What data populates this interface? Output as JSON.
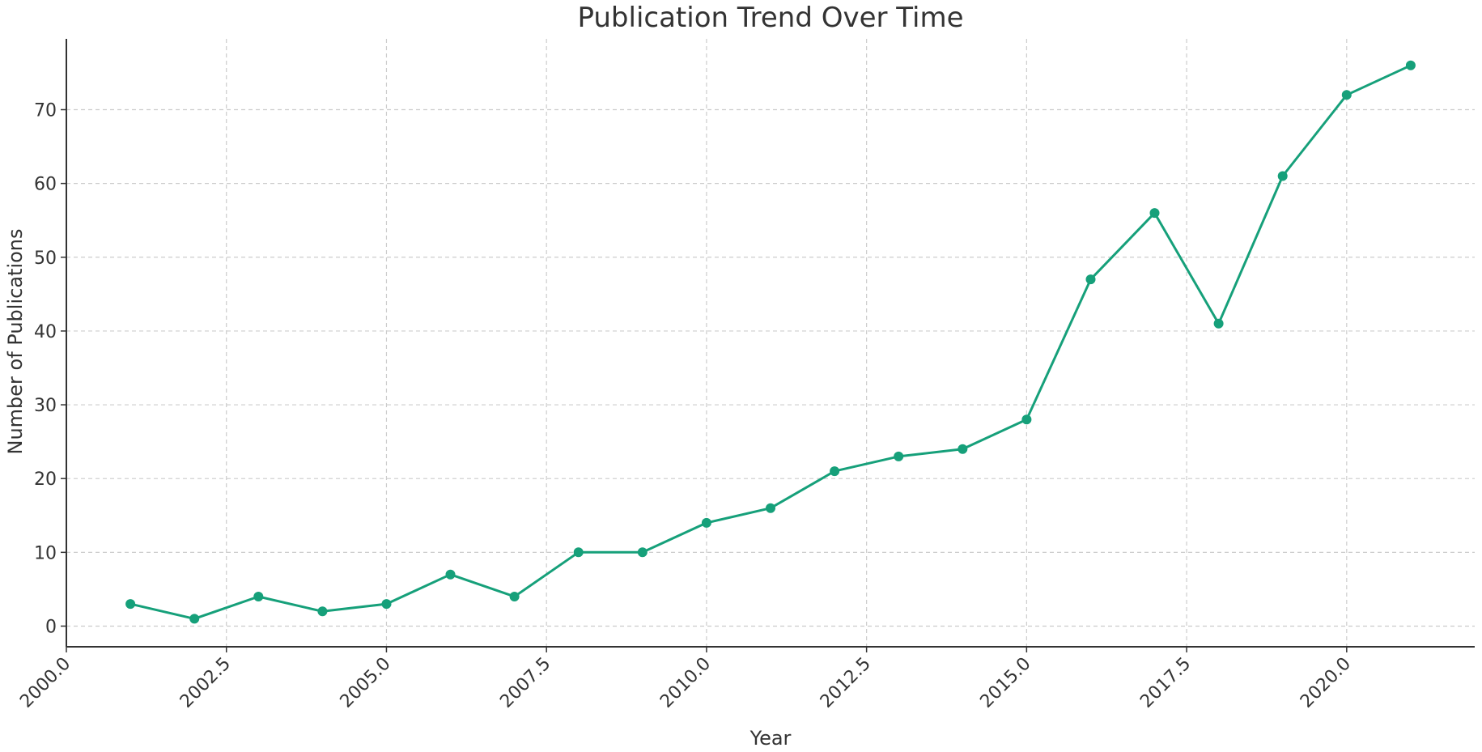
{
  "chart_data": {
    "type": "line",
    "title": "Publication Trend Over Time",
    "xlabel": "Year",
    "ylabel": "Number of Publications",
    "xlim": [
      2000.0,
      2022.0
    ],
    "ylim": [
      -2.8,
      79.6
    ],
    "grid": true,
    "x_ticks": [
      2000.0,
      2002.5,
      2005.0,
      2007.5,
      2010.0,
      2012.5,
      2015.0,
      2017.5,
      2020.0
    ],
    "x_tick_labels": [
      "2000.0",
      "2002.5",
      "2005.0",
      "2007.5",
      "2010.0",
      "2012.5",
      "2015.0",
      "2017.5",
      "2020.0"
    ],
    "y_ticks": [
      0,
      10,
      20,
      30,
      40,
      50,
      60,
      70
    ],
    "y_tick_labels": [
      "0",
      "10",
      "20",
      "30",
      "40",
      "50",
      "60",
      "70"
    ],
    "series": [
      {
        "color": "#16a07a",
        "marker": "circle",
        "x": [
          2001,
          2002,
          2003,
          2004,
          2005,
          2006,
          2007,
          2008,
          2009,
          2010,
          2011,
          2012,
          2013,
          2014,
          2015,
          2016,
          2017,
          2018,
          2019,
          2020,
          2021
        ],
        "values": [
          3,
          1,
          4,
          2,
          3,
          7,
          4,
          10,
          10,
          14,
          16,
          21,
          23,
          24,
          28,
          47,
          56,
          41,
          61,
          72,
          76
        ]
      }
    ]
  }
}
